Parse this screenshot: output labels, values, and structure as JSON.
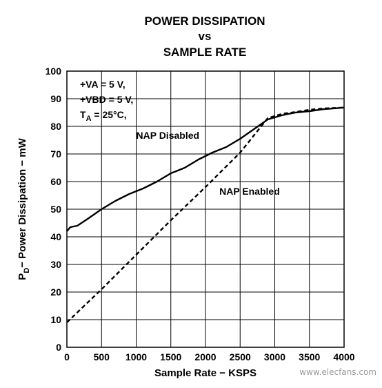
{
  "chart_data": {
    "type": "line",
    "title_lines": [
      "POWER DISSIPATION",
      "vs",
      "SAMPLE RATE"
    ],
    "xlabel": "Sample Rate − KSPS",
    "ylabel_main": "P",
    "ylabel_sub": "D",
    "ylabel_rest": "− Power Dissipation − mW",
    "xlim": [
      0,
      4000
    ],
    "ylim": [
      0,
      100
    ],
    "xticks": [
      0,
      500,
      1000,
      1500,
      2000,
      2500,
      3000,
      3500,
      4000
    ],
    "yticks": [
      0,
      10,
      20,
      30,
      40,
      50,
      60,
      70,
      80,
      90,
      100
    ],
    "xtick_labels": [
      "0",
      "500",
      "1000",
      "1500",
      "2000",
      "2500",
      "3000",
      "3500",
      "4000"
    ],
    "ytick_labels": [
      "0",
      "10",
      "20",
      "30",
      "40",
      "50",
      "60",
      "70",
      "80",
      "90",
      "100"
    ],
    "grid": true,
    "conditions": {
      "line1": "+VA = 5 V,",
      "line2": "+VBD = 5 V,",
      "line3_main": "T",
      "line3_sub": "A",
      "line3_rest": " = 25°C,"
    },
    "series": [
      {
        "name": "NAP Disabled",
        "style": "solid",
        "x": [
          0,
          50,
          150,
          300,
          500,
          700,
          900,
          1100,
          1300,
          1500,
          1700,
          1900,
          2100,
          2300,
          2500,
          2700,
          2900,
          3100,
          3300,
          3500,
          3700,
          4000
        ],
        "y": [
          42,
          43.5,
          44,
          46.5,
          50,
          53,
          55.5,
          57.5,
          60,
          63,
          65,
          68,
          70.5,
          72.5,
          75.5,
          79,
          82.5,
          84,
          85,
          85.5,
          86.2,
          86.8
        ]
      },
      {
        "name": "NAP Enabled",
        "style": "dashed",
        "x": [
          0,
          500,
          1000,
          1500,
          2000,
          2500,
          2900,
          3100,
          3300,
          3500,
          3700,
          4000
        ],
        "y": [
          9,
          21,
          33.5,
          46,
          58,
          70.5,
          83,
          84.5,
          85.2,
          86,
          86.5,
          86.8
        ]
      }
    ],
    "annotations": [
      {
        "text": "NAP Disabled",
        "x": 1000,
        "y": 75.5
      },
      {
        "text": "NAP Enabled",
        "x": 2200,
        "y": 55.3
      }
    ]
  },
  "watermark": "www.elecfans.com"
}
